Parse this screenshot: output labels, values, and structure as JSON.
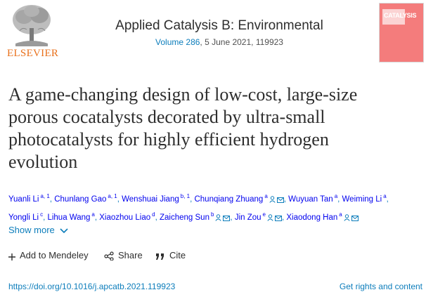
{
  "header": {
    "publisher_word": "ELSEVIER",
    "journal_title": "Applied Catalysis B: Environmental",
    "volume_link": "Volume 286",
    "issue_rest": ", 5 June 2021, 119923",
    "cover_name": "CATALYSIS",
    "cover_color": "#f47c7c"
  },
  "article": {
    "title": "A game-changing design of low-cost, large-size porous cocatalysts decorated by ultra-small photocatalysts for highly efficient hydrogen evolution"
  },
  "authors": [
    {
      "name": "Yuanli Li",
      "sup": "a, 1",
      "person": false,
      "email": false
    },
    {
      "name": "Chunlang Gao",
      "sup": "a, 1",
      "person": false,
      "email": false
    },
    {
      "name": "Wenshuai Jiang",
      "sup": "b, 1",
      "person": false,
      "email": false
    },
    {
      "name": "Chunqiang Zhuang",
      "sup": "a",
      "person": true,
      "email": true
    },
    {
      "name": "Wuyuan Tan",
      "sup": "a",
      "person": false,
      "email": false
    },
    {
      "name": "Weiming Li",
      "sup": "a",
      "person": false,
      "email": false
    },
    {
      "name": "Yongli Li",
      "sup": "c",
      "person": false,
      "email": false
    },
    {
      "name": "Lihua Wang",
      "sup": "a",
      "person": false,
      "email": false
    },
    {
      "name": "Xiaozhou Liao",
      "sup": "d",
      "person": false,
      "email": false
    },
    {
      "name": "Zaicheng Sun",
      "sup": "b",
      "person": true,
      "email": true
    },
    {
      "name": "Jin Zou",
      "sup": "e",
      "person": true,
      "email": true
    },
    {
      "name": "Xiaodong Han",
      "sup": "a",
      "person": true,
      "email": true
    }
  ],
  "show_more_label": "Show more",
  "actions": {
    "add_mendeley": "Add to Mendeley",
    "share": "Share",
    "cite": "Cite"
  },
  "doi": "https://doi.org/10.1016/j.apcatb.2021.119923",
  "rights": "Get rights and content",
  "colors": {
    "link": "#0c7dbb",
    "elsevier_orange": "#e9711c"
  }
}
